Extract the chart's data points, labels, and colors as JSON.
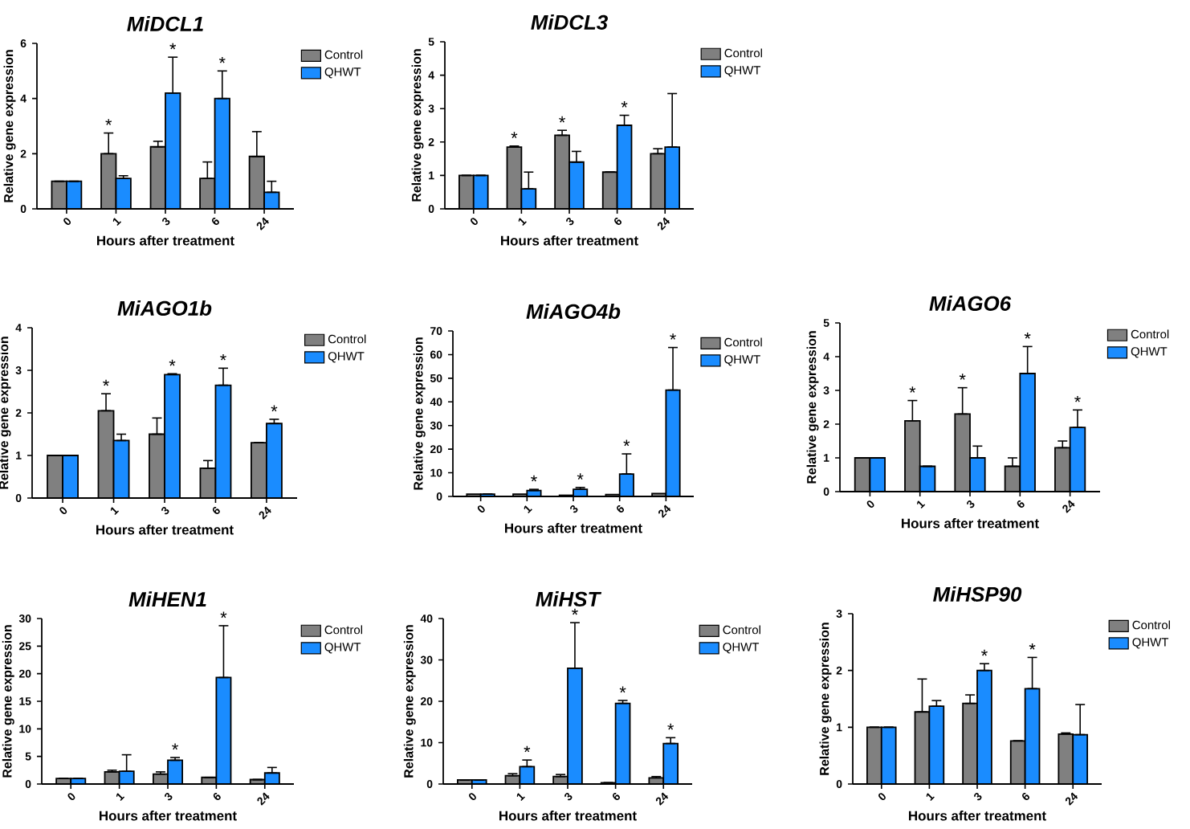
{
  "chart_data": [
    {
      "type": "bar",
      "title": "MiDCL1",
      "xlabel": "Hours after treatment",
      "ylabel": "Relative gene expression",
      "categories": [
        "0",
        "1",
        "3",
        "6",
        "24"
      ],
      "legend": "right",
      "ylim": [
        0,
        6
      ],
      "yticks": [
        0,
        2,
        4,
        6
      ],
      "series": [
        {
          "name": "Control",
          "color": "#808080",
          "values": [
            1,
            2.0,
            2.25,
            1.1,
            1.9
          ],
          "errors": [
            null,
            [
              2.0,
              2.75
            ],
            [
              2.25,
              2.45
            ],
            [
              1.1,
              1.7
            ],
            [
              1.9,
              2.8
            ]
          ]
        },
        {
          "name": "QHWT",
          "color": "#1a8cff",
          "values": [
            1,
            1.1,
            4.2,
            4.0,
            0.6
          ],
          "errors": [
            null,
            [
              1.1,
              1.2
            ],
            [
              4.2,
              5.5
            ],
            [
              4.0,
              5.0
            ],
            [
              0.6,
              1.0
            ]
          ]
        }
      ],
      "annotations": [
        {
          "text": "*",
          "x": "1",
          "y": 2.75
        },
        {
          "text": "*",
          "x": "3",
          "y": 5.5
        },
        {
          "text": "*",
          "x": "6",
          "y": 5.0
        }
      ]
    },
    {
      "type": "bar",
      "title": "MiDCL3",
      "xlabel": "Hours after treatment",
      "ylabel": "Relative gene expression",
      "categories": [
        "0",
        "1",
        "3",
        "6",
        "24"
      ],
      "legend": "right",
      "ylim": [
        0,
        5
      ],
      "yticks": [
        0,
        1,
        2,
        3,
        4,
        5
      ],
      "series": [
        {
          "name": "Control",
          "color": "#808080",
          "values": [
            1,
            1.85,
            2.2,
            1.1,
            1.65
          ],
          "errors": [
            null,
            [
              1.85,
              1.88
            ],
            [
              2.2,
              2.35
            ],
            null,
            [
              1.65,
              1.8
            ]
          ]
        },
        {
          "name": "QHWT",
          "color": "#1a8cff",
          "values": [
            1,
            0.6,
            1.4,
            2.5,
            1.85
          ],
          "errors": [
            null,
            [
              0.6,
              1.1
            ],
            [
              1.4,
              1.72
            ],
            [
              2.5,
              2.8
            ],
            [
              1.85,
              3.45
            ]
          ]
        }
      ],
      "annotations": [
        {
          "text": "*",
          "x": "1",
          "y": 1.88
        },
        {
          "text": "*",
          "x": "3",
          "y": 2.35
        },
        {
          "text": "*",
          "x": "6",
          "y": 2.8
        }
      ]
    },
    {
      "type": "bar",
      "title": "MiAGO1b",
      "xlabel": "Hours after treatment",
      "ylabel": "Relative gene expression",
      "categories": [
        "0",
        "1",
        "3",
        "6",
        "24"
      ],
      "legend": "right",
      "ylim": [
        0,
        4
      ],
      "yticks": [
        0,
        1,
        2,
        3,
        4
      ],
      "series": [
        {
          "name": "Control",
          "color": "#808080",
          "values": [
            1,
            2.05,
            1.5,
            0.7,
            1.3
          ],
          "errors": [
            null,
            [
              2.05,
              2.45
            ],
            [
              1.5,
              1.88
            ],
            [
              0.7,
              0.88
            ],
            null
          ]
        },
        {
          "name": "QHWT",
          "color": "#1a8cff",
          "values": [
            1,
            1.35,
            2.9,
            2.65,
            1.75
          ],
          "errors": [
            null,
            [
              1.35,
              1.5
            ],
            [
              2.9,
              2.92
            ],
            [
              2.65,
              3.05
            ],
            [
              1.75,
              1.85
            ]
          ]
        }
      ],
      "annotations": [
        {
          "text": "*",
          "x": "1",
          "y": 2.45
        },
        {
          "text": "*",
          "x": "3",
          "y": 2.92
        },
        {
          "text": "*",
          "x": "6",
          "y": 3.05
        },
        {
          "text": "*",
          "x": "24",
          "y": 1.85
        }
      ]
    },
    {
      "type": "bar",
      "title": "MiAGO4b",
      "xlabel": "Hours after treatment",
      "ylabel": "Relative gene expression",
      "categories": [
        "0",
        "1",
        "3",
        "6",
        "24"
      ],
      "legend": "right",
      "ylim": [
        0,
        70
      ],
      "yticks": [
        0,
        10,
        20,
        30,
        40,
        50,
        60,
        70
      ],
      "series": [
        {
          "name": "Control",
          "color": "#808080",
          "values": [
            1,
            1,
            0.5,
            0.8,
            1.2
          ]
        },
        {
          "name": "QHWT",
          "color": "#1a8cff",
          "values": [
            1,
            2.5,
            3,
            9.5,
            45
          ],
          "errors": [
            null,
            [
              2.5,
              3
            ],
            [
              3,
              3.8
            ],
            [
              9.5,
              18
            ],
            [
              45,
              63
            ]
          ]
        }
      ],
      "annotations": [
        {
          "text": "*",
          "x": "1",
          "y": 3
        },
        {
          "text": "*",
          "x": "3",
          "y": 3.8
        },
        {
          "text": "*",
          "x": "6",
          "y": 18
        },
        {
          "text": "*",
          "x": "24",
          "y": 63
        }
      ]
    },
    {
      "type": "bar",
      "title": "MiAGO6",
      "xlabel": "Hours after treatment",
      "ylabel": "Relative gene expression",
      "categories": [
        "0",
        "1",
        "3",
        "6",
        "24"
      ],
      "legend": "right",
      "ylim": [
        0,
        5
      ],
      "yticks": [
        0,
        1,
        2,
        3,
        4,
        5
      ],
      "series": [
        {
          "name": "Control",
          "color": "#808080",
          "values": [
            1,
            2.1,
            2.3,
            0.75,
            1.3
          ],
          "errors": [
            null,
            [
              2.1,
              2.7
            ],
            [
              2.3,
              3.08
            ],
            [
              0.75,
              1.0
            ],
            [
              1.3,
              1.5
            ]
          ]
        },
        {
          "name": "QHWT",
          "color": "#1a8cff",
          "values": [
            1,
            0.75,
            1.0,
            3.5,
            1.9
          ],
          "errors": [
            null,
            null,
            [
              1.0,
              1.35
            ],
            [
              3.5,
              4.3
            ],
            [
              1.9,
              2.42
            ]
          ]
        }
      ],
      "annotations": [
        {
          "text": "*",
          "x": "1",
          "y": 2.7
        },
        {
          "text": "*",
          "x": "3",
          "y": 3.08
        },
        {
          "text": "*",
          "x": "6",
          "y": 4.3
        },
        {
          "text": "*",
          "x": "24",
          "y": 2.42
        }
      ]
    },
    {
      "type": "bar",
      "title": "MiHEN1",
      "xlabel": "Hours after treatment",
      "ylabel": "Relative gene expression",
      "categories": [
        "0",
        "1",
        "3",
        "6",
        "24"
      ],
      "legend": "right",
      "ylim": [
        0,
        30
      ],
      "yticks": [
        0,
        5,
        10,
        15,
        20,
        25,
        30
      ],
      "series": [
        {
          "name": "Control",
          "color": "#808080",
          "values": [
            1,
            2.2,
            1.8,
            1.2,
            0.8
          ],
          "errors": [
            null,
            [
              2.2,
              2.5
            ],
            [
              1.8,
              2.2
            ],
            null,
            null
          ]
        },
        {
          "name": "QHWT",
          "color": "#1a8cff",
          "values": [
            1,
            2.3,
            4.3,
            19.3,
            2
          ],
          "errors": [
            null,
            [
              2.3,
              5.3
            ],
            [
              4.3,
              4.8
            ],
            [
              19.3,
              28.7
            ],
            [
              2,
              3
            ]
          ]
        }
      ],
      "annotations": [
        {
          "text": "*",
          "x": "3",
          "y": 4.8
        },
        {
          "text": "*",
          "x": "6",
          "y": 28.7
        }
      ]
    },
    {
      "type": "bar",
      "title": "MiHST",
      "xlabel": "Hours after treatment",
      "ylabel": "Relative gene expression",
      "categories": [
        "0",
        "1",
        "3",
        "6",
        "24"
      ],
      "legend": "right",
      "ylim": [
        0,
        40
      ],
      "yticks": [
        0,
        10,
        20,
        30,
        40
      ],
      "series": [
        {
          "name": "Control",
          "color": "#808080",
          "values": [
            1,
            2,
            1.8,
            0.3,
            1.5
          ],
          "errors": [
            null,
            [
              2,
              2.5
            ],
            [
              1.8,
              2.3
            ],
            null,
            [
              1.5,
              1.8
            ]
          ]
        },
        {
          "name": "QHWT",
          "color": "#1a8cff",
          "values": [
            1,
            4.2,
            28,
            19.5,
            9.8
          ],
          "errors": [
            null,
            [
              4.2,
              5.8
            ],
            [
              28,
              39
            ],
            [
              19.5,
              20.2
            ],
            [
              9.8,
              11.2
            ]
          ]
        }
      ],
      "annotations": [
        {
          "text": "*",
          "x": "1",
          "y": 5.8
        },
        {
          "text": "*",
          "x": "3",
          "y": 39
        },
        {
          "text": "*",
          "x": "6",
          "y": 20.2
        },
        {
          "text": "*",
          "x": "24",
          "y": 11.2
        }
      ]
    },
    {
      "type": "bar",
      "title": "MiHSP90",
      "xlabel": "Hours after treatment",
      "ylabel": "Relative gene expression",
      "categories": [
        "0",
        "1",
        "3",
        "6",
        "24"
      ],
      "legend": "right",
      "ylim": [
        0,
        3
      ],
      "yticks": [
        0,
        1,
        2,
        3
      ],
      "series": [
        {
          "name": "Control",
          "color": "#808080",
          "values": [
            1,
            1.27,
            1.42,
            0.76,
            0.88
          ],
          "errors": [
            null,
            [
              1.27,
              1.85
            ],
            [
              1.42,
              1.57
            ],
            null,
            [
              0.88,
              0.9
            ]
          ]
        },
        {
          "name": "QHWT",
          "color": "#1a8cff",
          "values": [
            1,
            1.37,
            2.0,
            1.68,
            0.87
          ],
          "errors": [
            null,
            [
              1.37,
              1.47
            ],
            [
              2.0,
              2.12
            ],
            [
              1.68,
              2.23
            ],
            [
              0.87,
              1.4
            ]
          ]
        }
      ],
      "annotations": [
        {
          "text": "*",
          "x": "3",
          "y": 2.12
        },
        {
          "text": "*",
          "x": "6",
          "y": 2.23
        }
      ]
    }
  ]
}
